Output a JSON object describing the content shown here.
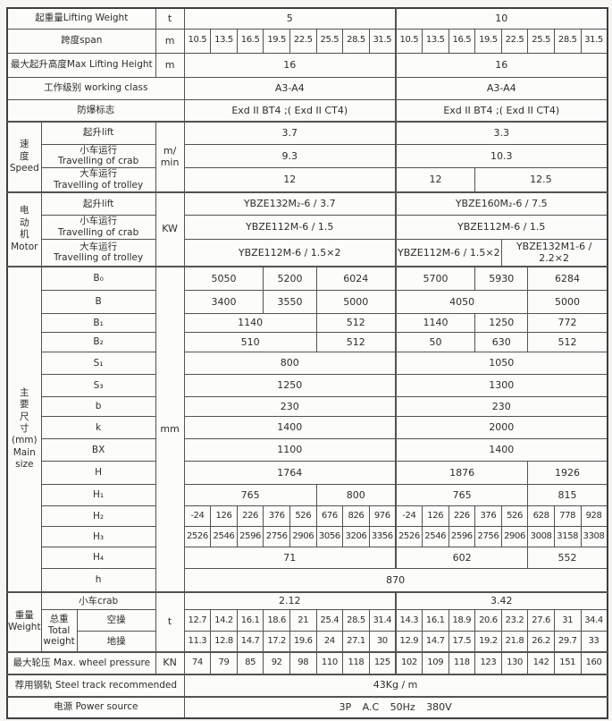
{
  "page": {
    "background": "#f6f5f2"
  },
  "table": {
    "name": "crane-specification-table",
    "border_color": "#555250",
    "outer_border_color": "#3e3e3e",
    "columns": [
      38,
      40,
      88,
      32,
      29.6,
      29.6,
      29.6,
      29.6,
      29.6,
      29.6,
      29.6,
      29.6,
      29.6,
      29.6,
      29.6,
      29.6,
      29.6,
      29.6,
      29.6,
      29.6
    ],
    "rows": [
      {
        "h": 23,
        "thick": false,
        "cells": [
          {
            "t": "起重量Lifting Weight",
            "c": 3,
            "f": "lbl"
          },
          {
            "t": "t"
          },
          {
            "t": "5",
            "c": 8
          },
          {
            "t": "10",
            "c": 8,
            "f": "hl"
          }
        ]
      },
      {
        "h": 27,
        "thick": false,
        "cells": [
          {
            "t": "跨度span",
            "c": 3,
            "f": "lbl"
          },
          {
            "t": "m"
          },
          {
            "t": "10.5",
            "f": "sm"
          },
          {
            "t": "13.5",
            "f": "sm"
          },
          {
            "t": "16.5",
            "f": "sm"
          },
          {
            "t": "19.5",
            "f": "sm"
          },
          {
            "t": "22.5",
            "f": "sm"
          },
          {
            "t": "25.5",
            "f": "sm"
          },
          {
            "t": "28.5",
            "f": "sm"
          },
          {
            "t": "31.5",
            "f": "sm"
          },
          {
            "t": "10.5",
            "f": "sm hl"
          },
          {
            "t": "13.5",
            "f": "sm"
          },
          {
            "t": "16.5",
            "f": "sm"
          },
          {
            "t": "19.5",
            "f": "sm"
          },
          {
            "t": "22.5",
            "f": "sm"
          },
          {
            "t": "25.5",
            "f": "sm"
          },
          {
            "t": "28.5",
            "f": "sm"
          },
          {
            "t": "31.5",
            "f": "sm"
          }
        ]
      },
      {
        "h": 27,
        "thick": false,
        "cells": [
          {
            "t": "最大起升高度Max Lifting Height",
            "c": 3,
            "f": "lbl"
          },
          {
            "t": "m"
          },
          {
            "t": "16",
            "c": 8
          },
          {
            "t": "16",
            "c": 8,
            "f": "hl"
          }
        ]
      },
      {
        "h": 25,
        "thick": false,
        "cells": [
          {
            "t": "工作级别 working class",
            "c": 4,
            "f": "lbl"
          },
          {
            "t": "A3-A4",
            "c": 8
          },
          {
            "t": "A3-A4",
            "c": 8,
            "f": "hl"
          }
        ]
      },
      {
        "h": 25,
        "thick": false,
        "cells": [
          {
            "t": "防爆标志",
            "c": 4,
            "f": "lbl"
          },
          {
            "t": "Exd II BT4 ;( Exd II CT4)",
            "c": 8
          },
          {
            "t": "Exd II BT4 ;( Exd II CT4)",
            "c": 8,
            "f": "hl"
          }
        ]
      },
      {
        "h": 25,
        "thick": true,
        "cells": [
          {
            "t": "速\n度\nSpeed",
            "r": 3,
            "f": "v"
          },
          {
            "t": "起升lift",
            "c": 2,
            "f": "lbl"
          },
          {
            "t": "m/\nmin",
            "r": 3
          },
          {
            "t": "3.7",
            "c": 8
          },
          {
            "t": "3.3",
            "c": 8,
            "f": "hl"
          }
        ]
      },
      {
        "h": 26,
        "thick": false,
        "cells": [
          {
            "t": "小车运行\nTravelling of crab",
            "c": 2,
            "f": "lbl"
          },
          {
            "t": "9.3",
            "c": 8
          },
          {
            "t": "10.3",
            "c": 8,
            "f": "hl"
          }
        ]
      },
      {
        "h": 26,
        "thick": false,
        "cells": [
          {
            "t": "大车运行\nTravelling of trolley",
            "c": 2,
            "f": "lbl"
          },
          {
            "t": "12",
            "c": 8
          },
          {
            "t": "12",
            "c": 3,
            "f": "hl"
          },
          {
            "t": "12.5",
            "c": 5
          }
        ]
      },
      {
        "h": 26,
        "thick": true,
        "cells": [
          {
            "t": "电\n动\n机\nMotor",
            "r": 3,
            "f": "v"
          },
          {
            "t": "起升lift",
            "c": 2,
            "f": "lbl"
          },
          {
            "t": "KW",
            "r": 3
          },
          {
            "t": "YBZE132M₂-6 / 3.7",
            "c": 8
          },
          {
            "t": "YBZE160M₂-6 / 7.5",
            "c": 8,
            "f": "hl"
          }
        ]
      },
      {
        "h": 27,
        "thick": false,
        "cells": [
          {
            "t": "小车运行\nTravelling of crab",
            "c": 2,
            "f": "lbl"
          },
          {
            "t": "YBZE112M-6 / 1.5",
            "c": 8
          },
          {
            "t": "YBZE112M-6 / 1.5",
            "c": 8,
            "f": "hl"
          }
        ]
      },
      {
        "h": 30,
        "thick": false,
        "cells": [
          {
            "t": "大车运行\nTravelling of trolley",
            "c": 2,
            "f": "lbl"
          },
          {
            "t": "YBZE112M-6 / 1.5×2",
            "c": 8
          },
          {
            "t": "YBZE112M-6 / 1.5×2",
            "c": 4,
            "f": "hl"
          },
          {
            "t": "YBZE132M1-6 /\n2.2×2",
            "c": 4
          }
        ]
      },
      {
        "h": 27,
        "thick": true,
        "cells": [
          {
            "t": "主\n要\n尺\n寸\n(mm)\nMain\nsize",
            "r": 15,
            "f": "v"
          },
          {
            "t": "B₀",
            "c": 2,
            "f": "lbl"
          },
          {
            "t": "mm",
            "r": 15
          },
          {
            "t": "5050",
            "c": 3
          },
          {
            "t": "5200",
            "c": 2
          },
          {
            "t": "6024",
            "c": 3
          },
          {
            "t": "5700",
            "c": 3,
            "f": "hl"
          },
          {
            "t": "5930",
            "c": 2
          },
          {
            "t": "6284",
            "c": 3
          }
        ]
      },
      {
        "h": 26,
        "thick": false,
        "cells": [
          {
            "t": "B",
            "c": 2,
            "f": "lbl"
          },
          {
            "t": "3400",
            "c": 3
          },
          {
            "t": "3550",
            "c": 2
          },
          {
            "t": "5000",
            "c": 3
          },
          {
            "t": "4050",
            "c": 5,
            "f": "hl"
          },
          {
            "t": "5000",
            "c": 3
          }
        ]
      },
      {
        "h": 21,
        "thick": false,
        "cells": [
          {
            "t": "B₁",
            "c": 2,
            "f": "lbl"
          },
          {
            "t": "1140",
            "c": 5
          },
          {
            "t": "512",
            "c": 3
          },
          {
            "t": "1140",
            "c": 3,
            "f": "hl"
          },
          {
            "t": "1250",
            "c": 2
          },
          {
            "t": "772",
            "c": 3
          }
        ]
      },
      {
        "h": 22,
        "thick": false,
        "cells": [
          {
            "t": "B₂",
            "c": 2,
            "f": "lbl"
          },
          {
            "t": "510",
            "c": 5
          },
          {
            "t": "512",
            "c": 3
          },
          {
            "t": "50",
            "c": 3,
            "f": "hl"
          },
          {
            "t": "630",
            "c": 2
          },
          {
            "t": "512",
            "c": 3
          }
        ]
      },
      {
        "h": 25,
        "thick": false,
        "cells": [
          {
            "t": "S₁",
            "c": 2,
            "f": "lbl"
          },
          {
            "t": "800",
            "c": 8
          },
          {
            "t": "1050",
            "c": 8,
            "f": "hl"
          }
        ]
      },
      {
        "h": 25,
        "thick": false,
        "cells": [
          {
            "t": "S₃",
            "c": 2,
            "f": "lbl"
          },
          {
            "t": "1250",
            "c": 8
          },
          {
            "t": "1300",
            "c": 8,
            "f": "hl"
          }
        ]
      },
      {
        "h": 22,
        "thick": false,
        "cells": [
          {
            "t": "b",
            "c": 2,
            "f": "lbl"
          },
          {
            "t": "230",
            "c": 8
          },
          {
            "t": "230",
            "c": 8,
            "f": "hl"
          }
        ]
      },
      {
        "h": 25,
        "thick": false,
        "cells": [
          {
            "t": "k",
            "c": 2,
            "f": "lbl"
          },
          {
            "t": "1400",
            "c": 8
          },
          {
            "t": "2000",
            "c": 8,
            "f": "hl"
          }
        ]
      },
      {
        "h": 25,
        "thick": false,
        "cells": [
          {
            "t": "BX",
            "c": 2,
            "f": "lbl"
          },
          {
            "t": "1100",
            "c": 8
          },
          {
            "t": "1400",
            "c": 8,
            "f": "hl"
          }
        ]
      },
      {
        "h": 26,
        "thick": false,
        "cells": [
          {
            "t": "H",
            "c": 2,
            "f": "lbl"
          },
          {
            "t": "1764",
            "c": 8
          },
          {
            "t": "1876",
            "c": 5,
            "f": "hl"
          },
          {
            "t": "1926",
            "c": 3
          }
        ]
      },
      {
        "h": 24,
        "thick": false,
        "cells": [
          {
            "t": "H₁",
            "c": 2,
            "f": "lbl"
          },
          {
            "t": "765",
            "c": 5
          },
          {
            "t": "800",
            "c": 3
          },
          {
            "t": "765",
            "c": 5,
            "f": "hl"
          },
          {
            "t": "815",
            "c": 3
          }
        ]
      },
      {
        "h": 23,
        "thick": false,
        "cells": [
          {
            "t": "H₂",
            "c": 2,
            "f": "lbl"
          },
          {
            "t": "-24",
            "f": "sm"
          },
          {
            "t": "126",
            "f": "sm"
          },
          {
            "t": "226",
            "f": "sm"
          },
          {
            "t": "376",
            "f": "sm"
          },
          {
            "t": "526",
            "f": "sm"
          },
          {
            "t": "676",
            "f": "sm"
          },
          {
            "t": "826",
            "f": "sm"
          },
          {
            "t": "976",
            "f": "sm"
          },
          {
            "t": "-24",
            "f": "sm hl"
          },
          {
            "t": "126",
            "f": "sm"
          },
          {
            "t": "226",
            "f": "sm"
          },
          {
            "t": "376",
            "f": "sm"
          },
          {
            "t": "526",
            "f": "sm"
          },
          {
            "t": "628",
            "f": "sm"
          },
          {
            "t": "778",
            "f": "sm"
          },
          {
            "t": "928",
            "f": "sm"
          }
        ]
      },
      {
        "h": 23,
        "thick": false,
        "cells": [
          {
            "t": "H₃",
            "c": 2,
            "f": "lbl"
          },
          {
            "t": "2526",
            "f": "sm"
          },
          {
            "t": "2546",
            "f": "sm"
          },
          {
            "t": "2596",
            "f": "sm"
          },
          {
            "t": "2756",
            "f": "sm"
          },
          {
            "t": "2906",
            "f": "sm"
          },
          {
            "t": "3056",
            "f": "sm"
          },
          {
            "t": "3206",
            "f": "sm"
          },
          {
            "t": "3356",
            "f": "sm"
          },
          {
            "t": "2526",
            "f": "sm hl"
          },
          {
            "t": "2546",
            "f": "sm"
          },
          {
            "t": "2596",
            "f": "sm"
          },
          {
            "t": "2756",
            "f": "sm"
          },
          {
            "t": "2906",
            "f": "sm"
          },
          {
            "t": "3008",
            "f": "sm"
          },
          {
            "t": "3158",
            "f": "sm"
          },
          {
            "t": "3308",
            "f": "sm"
          }
        ]
      },
      {
        "h": 24,
        "thick": false,
        "cells": [
          {
            "t": "H₄",
            "c": 2,
            "f": "lbl"
          },
          {
            "t": "71",
            "c": 8
          },
          {
            "t": "602",
            "c": 5,
            "f": "hl"
          },
          {
            "t": "552",
            "c": 3
          }
        ]
      },
      {
        "h": 26,
        "thick": false,
        "cells": [
          {
            "t": "h",
            "c": 2,
            "f": "lbl"
          },
          {
            "t": "870",
            "c": 16
          }
        ]
      },
      {
        "h": 20,
        "thick": true,
        "cells": [
          {
            "t": "重量\nWeight",
            "r": 3,
            "f": "v"
          },
          {
            "t": "小车crab",
            "c": 2,
            "f": "lbl"
          },
          {
            "t": "t",
            "r": 3
          },
          {
            "t": "2.12",
            "c": 8
          },
          {
            "t": "3.42",
            "c": 8,
            "f": "hl"
          }
        ]
      },
      {
        "h": 24,
        "thick": false,
        "cells": [
          {
            "t": "总重\nTotal\nweight",
            "r": 2,
            "f": "lbl"
          },
          {
            "t": "空操",
            "f": "lbl"
          },
          {
            "t": "12.7",
            "f": "sm"
          },
          {
            "t": "14.2",
            "f": "sm"
          },
          {
            "t": "16.1",
            "f": "sm"
          },
          {
            "t": "18.6",
            "f": "sm"
          },
          {
            "t": "21",
            "f": "sm"
          },
          {
            "t": "25.4",
            "f": "sm"
          },
          {
            "t": "28.5",
            "f": "sm"
          },
          {
            "t": "31.4",
            "f": "sm"
          },
          {
            "t": "14.3",
            "f": "sm hl"
          },
          {
            "t": "16.1",
            "f": "sm"
          },
          {
            "t": "18.9",
            "f": "sm"
          },
          {
            "t": "20.6",
            "f": "sm"
          },
          {
            "t": "23.2",
            "f": "sm"
          },
          {
            "t": "27.6",
            "f": "sm"
          },
          {
            "t": "31",
            "f": "sm"
          },
          {
            "t": "34.4",
            "f": "sm"
          }
        ]
      },
      {
        "h": 23,
        "thick": false,
        "cells": [
          {
            "t": "地操",
            "f": "lbl"
          },
          {
            "t": "11.3",
            "f": "sm"
          },
          {
            "t": "12.8",
            "f": "sm"
          },
          {
            "t": "14.7",
            "f": "sm"
          },
          {
            "t": "17.2",
            "f": "sm"
          },
          {
            "t": "19.6",
            "f": "sm"
          },
          {
            "t": "24",
            "f": "sm"
          },
          {
            "t": "27.1",
            "f": "sm"
          },
          {
            "t": "30",
            "f": "sm"
          },
          {
            "t": "12.9",
            "f": "sm hl"
          },
          {
            "t": "14.7",
            "f": "sm"
          },
          {
            "t": "17.5",
            "f": "sm"
          },
          {
            "t": "19.2",
            "f": "sm"
          },
          {
            "t": "21.8",
            "f": "sm"
          },
          {
            "t": "26.2",
            "f": "sm"
          },
          {
            "t": "29.7",
            "f": "sm"
          },
          {
            "t": "33",
            "f": "sm"
          }
        ]
      },
      {
        "h": 25,
        "thick": true,
        "cells": [
          {
            "t": "最大轮压 Max.  wheel pressure",
            "c": 3,
            "f": "lbl"
          },
          {
            "t": "KN"
          },
          {
            "t": "74",
            "f": "sm"
          },
          {
            "t": "79",
            "f": "sm"
          },
          {
            "t": "85",
            "f": "sm"
          },
          {
            "t": "92",
            "f": "sm"
          },
          {
            "t": "98",
            "f": "sm"
          },
          {
            "t": "110",
            "f": "sm"
          },
          {
            "t": "118",
            "f": "sm"
          },
          {
            "t": "125",
            "f": "sm"
          },
          {
            "t": "102",
            "f": "sm hl"
          },
          {
            "t": "109",
            "f": "sm"
          },
          {
            "t": "118",
            "f": "sm"
          },
          {
            "t": "123",
            "f": "sm"
          },
          {
            "t": "130",
            "f": "sm"
          },
          {
            "t": "142",
            "f": "sm"
          },
          {
            "t": "151",
            "f": "sm"
          },
          {
            "t": "160",
            "f": "sm"
          }
        ]
      },
      {
        "h": 25,
        "thick": true,
        "cells": [
          {
            "t": "荐用钢轨 Steel track recommended",
            "c": 4,
            "f": "lbl"
          },
          {
            "t": "43Kg / m",
            "c": 16
          }
        ]
      },
      {
        "h": 24,
        "thick": true,
        "cells": [
          {
            "t": "电源 Power source",
            "c": 4,
            "f": "lbl"
          },
          {
            "t": "3P A.C 50Hz 380V",
            "c": 16,
            "f": "gap"
          }
        ]
      }
    ]
  }
}
